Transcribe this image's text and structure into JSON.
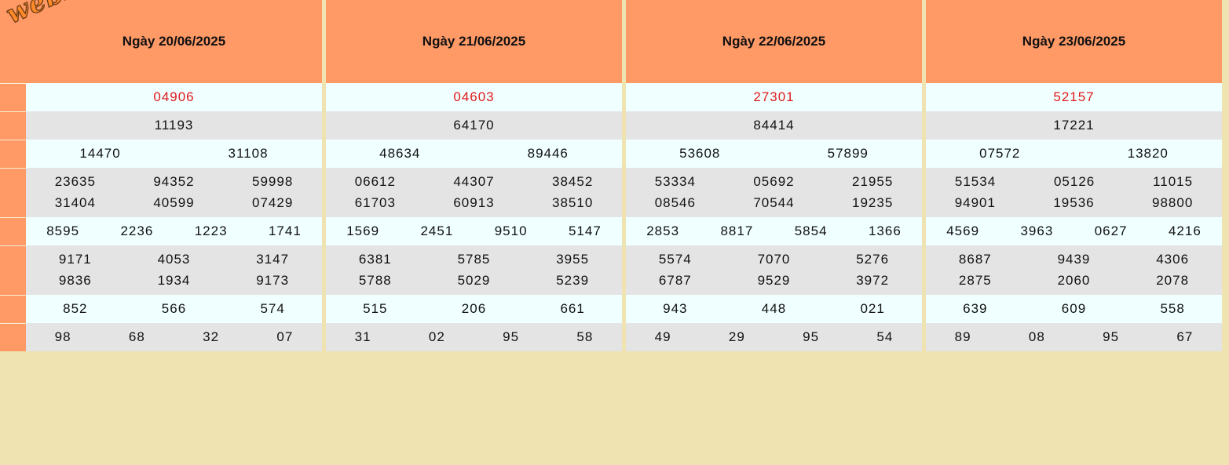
{
  "logo": {
    "text": "webxoso.net"
  },
  "colors": {
    "header": "#ff9966",
    "light_row": "#f0ffff",
    "gray_row": "#e4e4e4",
    "special": "#e01b1b",
    "page_bg": "#efe3b1"
  },
  "days": [
    {
      "date": "Ngày 20/06/2025",
      "rows": [
        [
          "04906"
        ],
        [
          "11193"
        ],
        [
          "14470",
          "31108"
        ],
        [
          "23635",
          "94352",
          "59998",
          "31404",
          "40599",
          "07429"
        ],
        [
          "8595",
          "2236",
          "1223",
          "1741"
        ],
        [
          "9171",
          "4053",
          "3147",
          "9836",
          "1934",
          "9173"
        ],
        [
          "852",
          "566",
          "574"
        ],
        [
          "98",
          "68",
          "32",
          "07"
        ]
      ]
    },
    {
      "date": "Ngày 21/06/2025",
      "rows": [
        [
          "04603"
        ],
        [
          "64170"
        ],
        [
          "48634",
          "89446"
        ],
        [
          "06612",
          "44307",
          "38452",
          "61703",
          "60913",
          "38510"
        ],
        [
          "1569",
          "2451",
          "9510",
          "5147"
        ],
        [
          "6381",
          "5785",
          "3955",
          "5788",
          "5029",
          "5239"
        ],
        [
          "515",
          "206",
          "661"
        ],
        [
          "31",
          "02",
          "95",
          "58"
        ]
      ]
    },
    {
      "date": "Ngày 22/06/2025",
      "rows": [
        [
          "27301"
        ],
        [
          "84414"
        ],
        [
          "53608",
          "57899"
        ],
        [
          "53334",
          "05692",
          "21955",
          "08546",
          "70544",
          "19235"
        ],
        [
          "2853",
          "8817",
          "5854",
          "1366"
        ],
        [
          "5574",
          "7070",
          "5276",
          "6787",
          "9529",
          "3972"
        ],
        [
          "943",
          "448",
          "021"
        ],
        [
          "49",
          "29",
          "95",
          "54"
        ]
      ]
    },
    {
      "date": "Ngày 23/06/2025",
      "rows": [
        [
          "52157"
        ],
        [
          "17221"
        ],
        [
          "07572",
          "13820"
        ],
        [
          "51534",
          "05126",
          "11015",
          "94901",
          "19536",
          "98800"
        ],
        [
          "4569",
          "3963",
          "0627",
          "4216"
        ],
        [
          "8687",
          "9439",
          "4306",
          "2875",
          "2060",
          "2078"
        ],
        [
          "639",
          "609",
          "558"
        ],
        [
          "89",
          "08",
          "95",
          "67"
        ]
      ]
    }
  ]
}
